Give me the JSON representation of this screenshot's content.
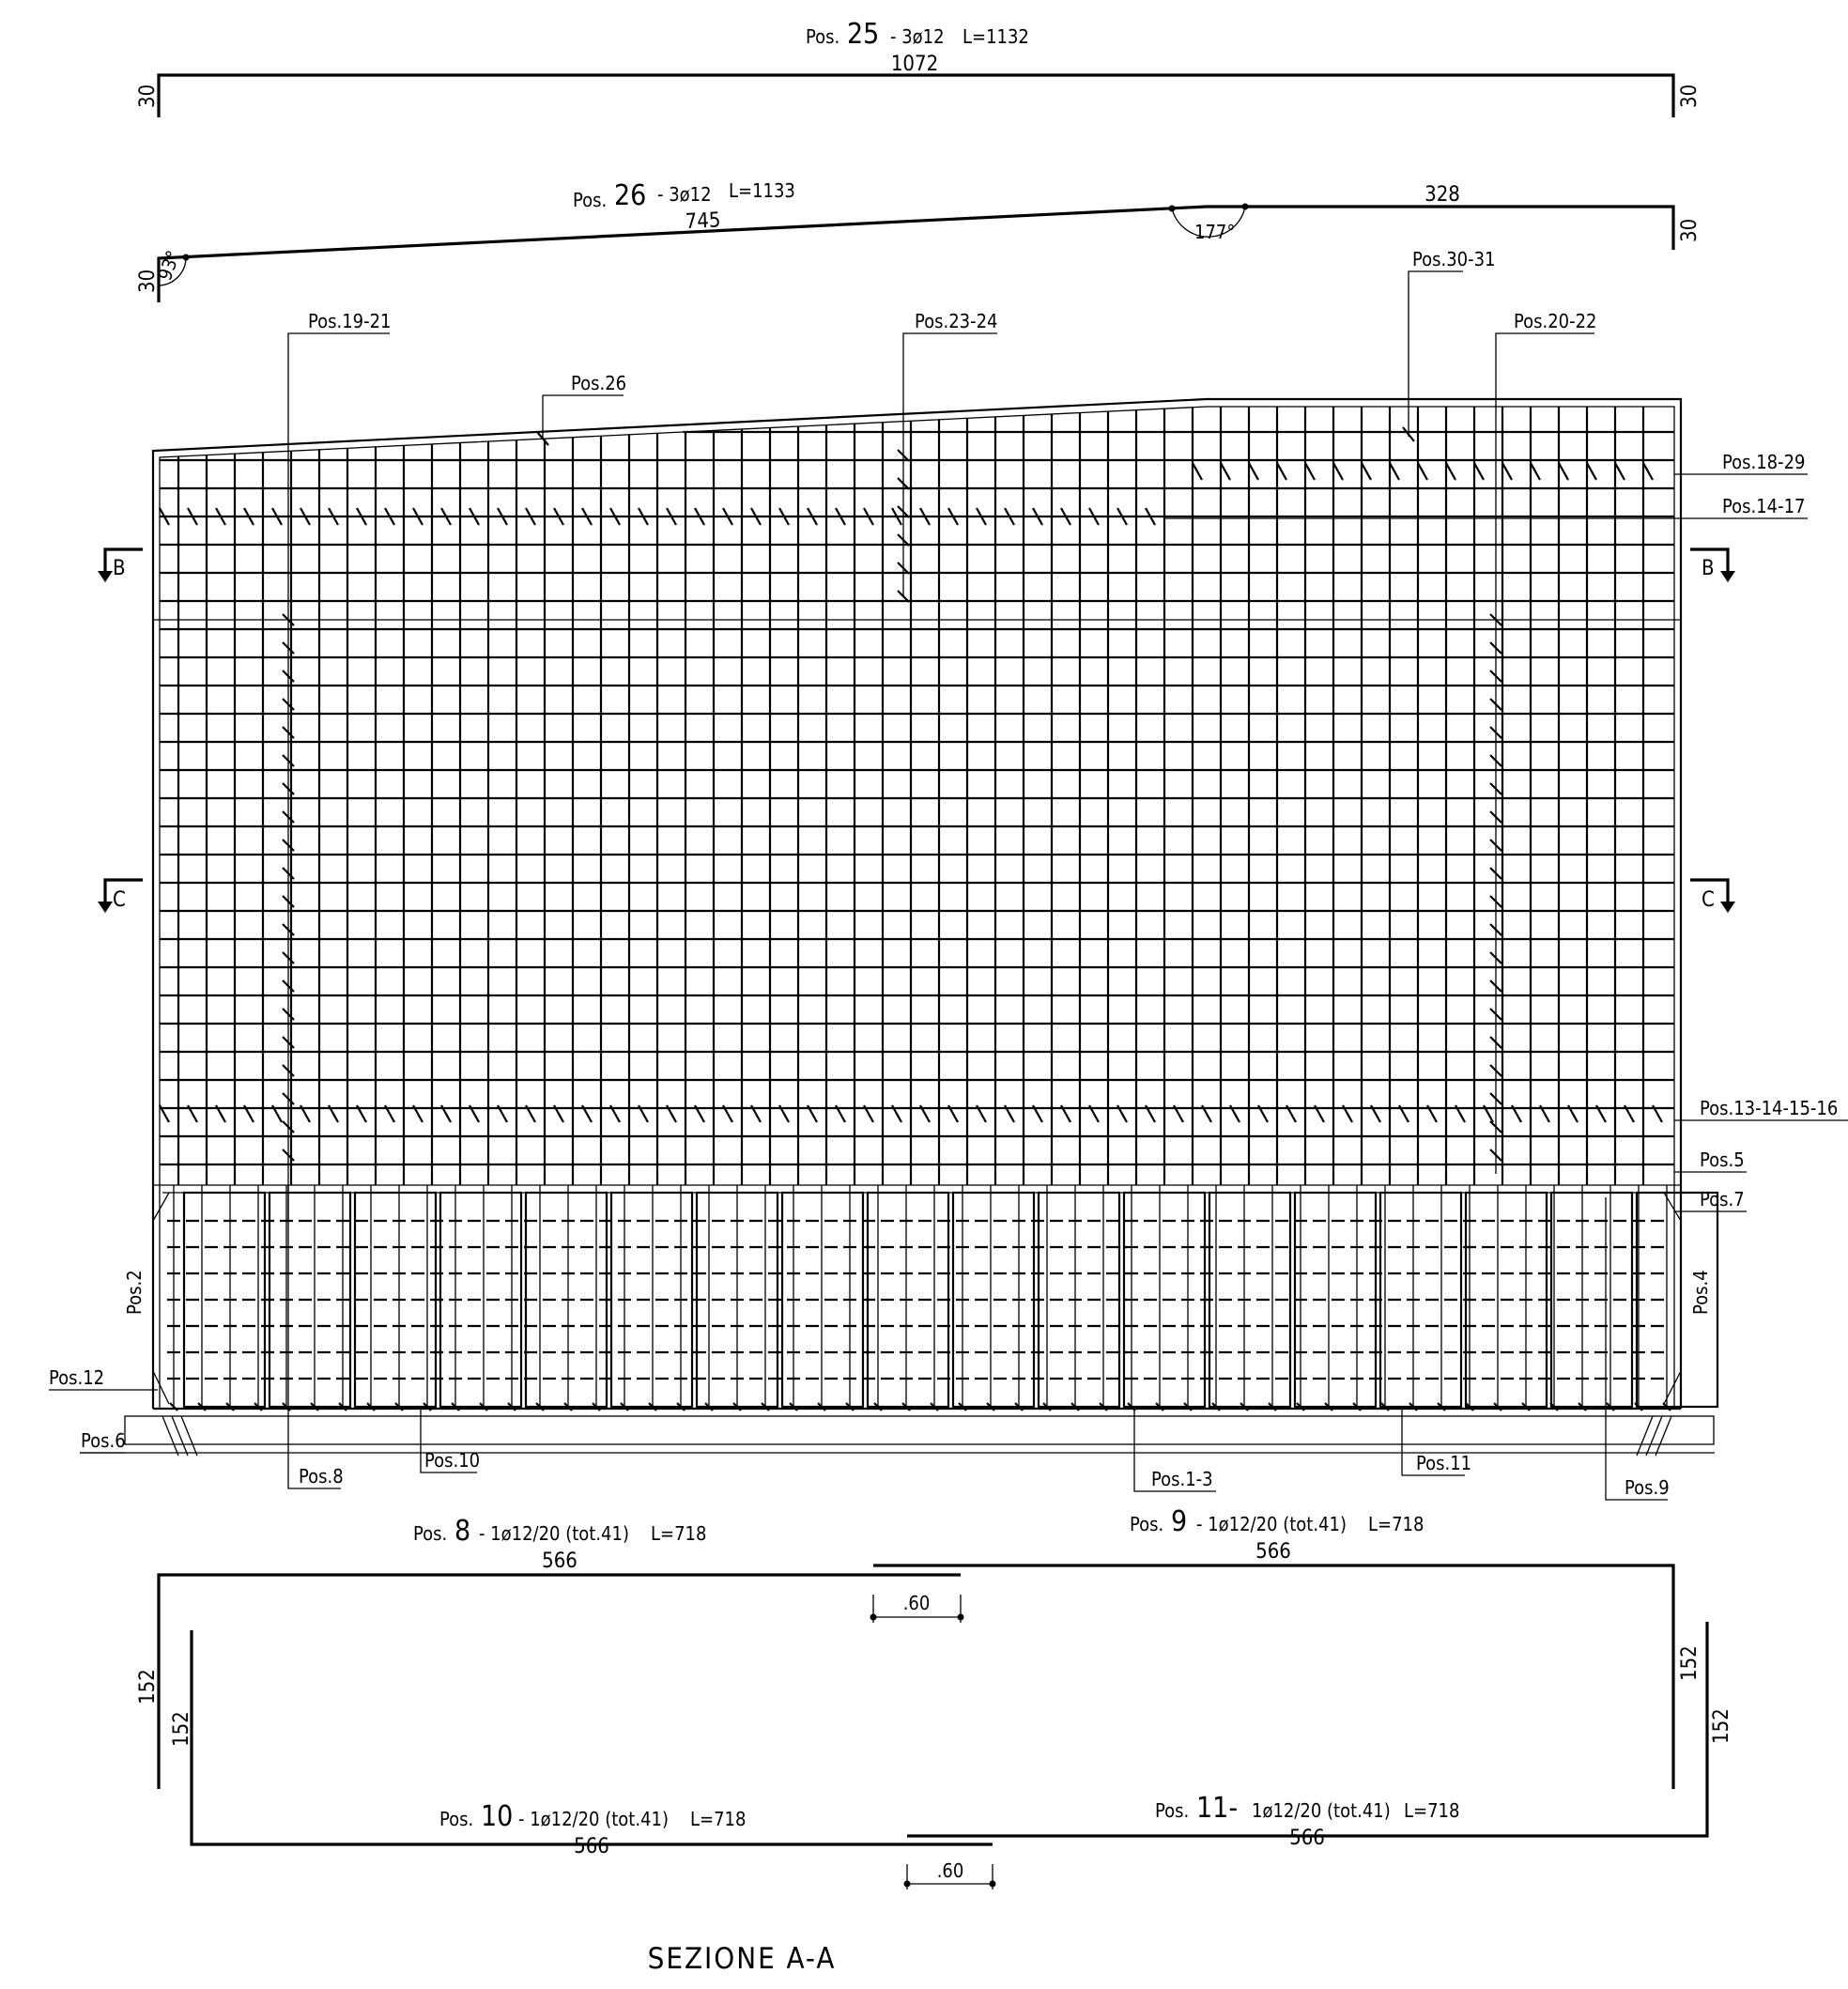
{
  "bars": {
    "pos25": {
      "pre": "Pos.",
      "num": "25",
      "spec": "- 3ø12",
      "length": "L=1132",
      "dim_main": "1072",
      "dim_leg_left": "30",
      "dim_leg_right": "30"
    },
    "pos26": {
      "pre": "Pos.",
      "num": "26",
      "spec": "- 3ø12",
      "length": "L=1133",
      "dim_left": "745",
      "dim_right": "328",
      "dim_leg_left": "30",
      "dim_leg_right": "30",
      "angle_left": "93°",
      "angle_mid": "177°"
    },
    "pos8": {
      "pre": "Pos.",
      "num": "8",
      "spec": "- 1ø12/20 (tot.41)",
      "length": "L=718",
      "dim_horiz": "566",
      "dim_vert": "152"
    },
    "pos9": {
      "pre": "Pos.",
      "num": "9",
      "spec": "- 1ø12/20 (tot.41)",
      "length": "L=718",
      "dim_horiz": "566",
      "dim_vert": "152"
    },
    "pos10": {
      "pre": "Pos.",
      "num": "10",
      "spec": "- 1ø12/20 (tot.41)",
      "length": "L=718",
      "dim_horiz": "566",
      "dim_vert": "152"
    },
    "pos11": {
      "pre": "Pos.",
      "num": "11-",
      "spec": "1ø12/20 (tot.41)",
      "length": "L=718",
      "dim_horiz": "566",
      "dim_vert": "152"
    },
    "overlap_top": ".60",
    "overlap_bottom": ".60"
  },
  "callouts": {
    "pos19_21": "Pos.19-21",
    "pos23_24": "Pos.23-24",
    "pos30_31": "Pos.30-31",
    "pos20_22": "Pos.20-22",
    "pos26": "Pos.26",
    "pos18_29": "Pos.18-29",
    "pos14_17": "Pos.14-17",
    "pos13_16": "Pos.13-14-15-16",
    "pos5": "Pos.5",
    "pos7": "Pos.7",
    "pos2": "Pos.2",
    "pos4": "Pos.4",
    "pos12": "Pos.12",
    "pos6": "Pos.6",
    "pos8": "Pos.8",
    "pos10": "Pos.10",
    "pos1_3": "Pos.1-3",
    "pos11": "Pos.11",
    "pos9": "Pos.9"
  },
  "section_marks": {
    "b_left": "B",
    "b_right": "B",
    "c_left": "C",
    "c_right": "C"
  },
  "title": "SEZIONE A-A"
}
